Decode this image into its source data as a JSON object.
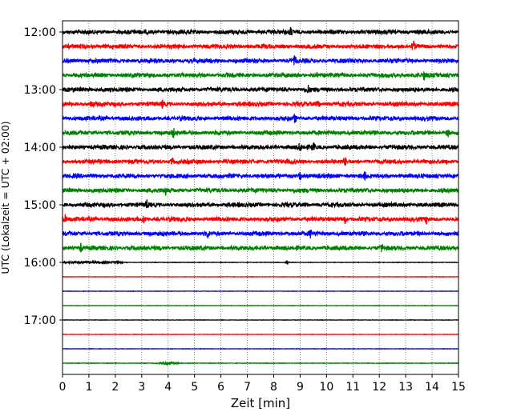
{
  "chart_data": {
    "type": "line",
    "title": "",
    "xlabel": "Zeit  [min]",
    "ylabel": "UTC (Lokalzeit = UTC + 02:00)",
    "xlim": [
      0,
      15
    ],
    "x_ticks": [
      "0",
      "1",
      "2",
      "3",
      "4",
      "5",
      "6",
      "7",
      "8",
      "9",
      "10",
      "11",
      "12",
      "13",
      "14",
      "15"
    ],
    "y_ticks": [
      "12:00",
      "13:00",
      "14:00",
      "15:00",
      "16:00",
      "17:00"
    ],
    "grid": "vertical dotted",
    "colors": [
      "#000000",
      "#ff0000",
      "#0000ff",
      "#008000"
    ],
    "series": [
      {
        "start": "12:00",
        "color": "#000000",
        "activity": "active",
        "spikes": [
          8.65
        ]
      },
      {
        "start": "12:15",
        "color": "#ff0000",
        "activity": "active",
        "spikes": [
          13.3
        ]
      },
      {
        "start": "12:30",
        "color": "#0000ff",
        "activity": "active",
        "spikes": [
          8.8
        ]
      },
      {
        "start": "12:45",
        "color": "#008000",
        "activity": "active",
        "spikes": [
          9.6,
          13.7
        ]
      },
      {
        "start": "13:00",
        "color": "#000000",
        "activity": "active",
        "spikes": [
          9.3
        ]
      },
      {
        "start": "13:15",
        "color": "#ff0000",
        "activity": "active",
        "spikes": [
          1.1,
          3.8,
          9.7
        ]
      },
      {
        "start": "13:30",
        "color": "#0000ff",
        "activity": "active",
        "spikes": [
          8.8
        ]
      },
      {
        "start": "13:45",
        "color": "#008000",
        "activity": "active",
        "spikes": [
          4.2,
          14.6
        ]
      },
      {
        "start": "14:00",
        "color": "#000000",
        "activity": "active",
        "spikes": [
          9.0,
          9.5
        ]
      },
      {
        "start": "14:15",
        "color": "#ff0000",
        "activity": "active",
        "spikes": [
          4.15,
          10.7
        ]
      },
      {
        "start": "14:30",
        "color": "#0000ff",
        "activity": "active",
        "spikes": [
          9.0,
          11.45
        ]
      },
      {
        "start": "14:45",
        "color": "#008000",
        "activity": "active",
        "spikes": [
          3.9
        ]
      },
      {
        "start": "15:00",
        "color": "#000000",
        "activity": "active",
        "spikes": [
          3.2
        ]
      },
      {
        "start": "15:15",
        "color": "#ff0000",
        "activity": "active",
        "spikes": [
          0.1,
          3.1,
          10.7,
          13.8
        ]
      },
      {
        "start": "15:30",
        "color": "#0000ff",
        "activity": "active",
        "spikes": [
          5.5,
          9.4
        ]
      },
      {
        "start": "15:45",
        "color": "#008000",
        "activity": "active",
        "spikes": [
          0.7,
          12.1
        ]
      },
      {
        "start": "16:00",
        "color": "#000000",
        "activity": "partial",
        "spikes": [
          8.5
        ]
      },
      {
        "start": "16:15",
        "color": "#ff0000",
        "activity": "quiet",
        "spikes": []
      },
      {
        "start": "16:30",
        "color": "#0000ff",
        "activity": "quiet",
        "spikes": []
      },
      {
        "start": "16:45",
        "color": "#008000",
        "activity": "quiet",
        "spikes": []
      },
      {
        "start": "17:00",
        "color": "#000000",
        "activity": "quiet",
        "spikes": []
      },
      {
        "start": "17:15",
        "color": "#ff0000",
        "activity": "quiet",
        "spikes": []
      },
      {
        "start": "17:30",
        "color": "#0000ff",
        "activity": "quiet",
        "spikes": []
      },
      {
        "start": "17:45",
        "color": "#008000",
        "activity": "quiet-burst",
        "spikes": [
          4.0
        ]
      }
    ]
  }
}
